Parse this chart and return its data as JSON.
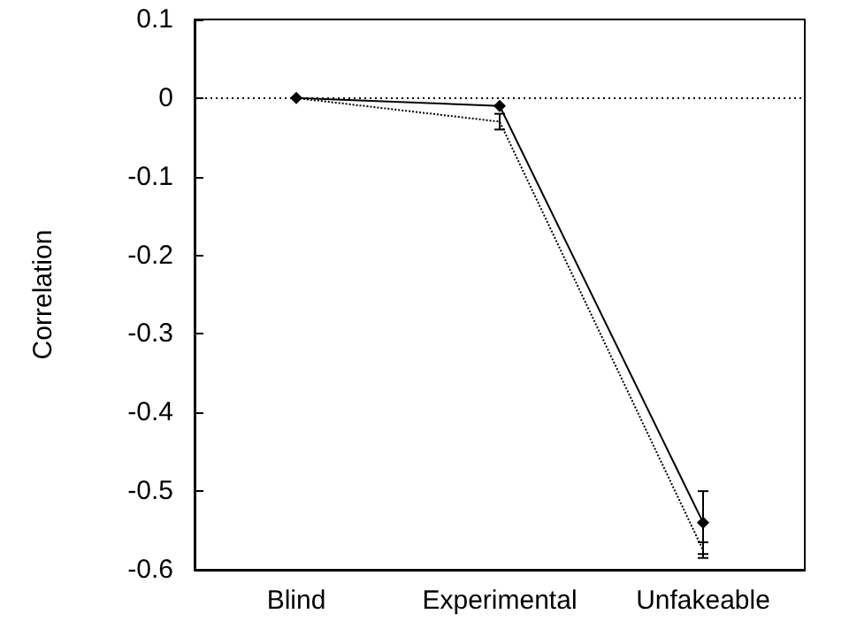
{
  "chart_data": {
    "type": "line",
    "ylabel": "Correlation",
    "categories": [
      "Blind",
      "Experimental",
      "Unfakeable"
    ],
    "series": [
      {
        "color": "#000000",
        "values": [
          0,
          -0.01,
          -0.54
        ],
        "errors": [
          null,
          null,
          0.04
        ],
        "marker": "diamond",
        "line_style": "solid"
      },
      {
        "color": "#000000",
        "values": [
          0,
          -0.03,
          -0.575
        ],
        "errors": [
          null,
          0.01,
          0.01
        ],
        "marker": "none",
        "line_style": "dotted"
      }
    ],
    "ylim": [
      -0.6,
      0.1
    ],
    "yticks": [
      -0.6,
      -0.5,
      -0.4,
      -0.3,
      -0.2,
      -0.1,
      0,
      0.1
    ],
    "ref_lines": [
      {
        "axis": "y",
        "value": 0,
        "line_style": "dotted",
        "color": "#000000"
      }
    ],
    "grid": false
  }
}
